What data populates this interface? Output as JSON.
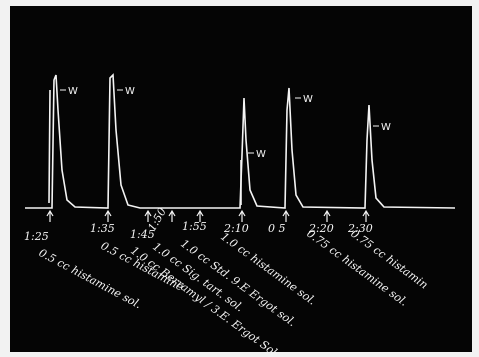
{
  "figure": {
    "peak_labels": [
      "W",
      "W",
      "W",
      "W",
      "W"
    ],
    "times": [
      "1:25",
      "1:35",
      "1:45",
      "1:50",
      "1:55",
      "2:10",
      "0 5",
      "2:20",
      "2:30"
    ],
    "notes": [
      "0.5 cc histamine sol.",
      "0.5 cc histamine",
      "1.0 cc Berramyl / 3.E. Ergot Sol",
      "1.0 cc Sig. tart. sol.",
      "1.0 cc Std. 9.E Ergot sol.",
      "1.0 cc histamine sol.",
      "0.75 cc histamine sol.",
      "0.75 cc histamin"
    ]
  }
}
